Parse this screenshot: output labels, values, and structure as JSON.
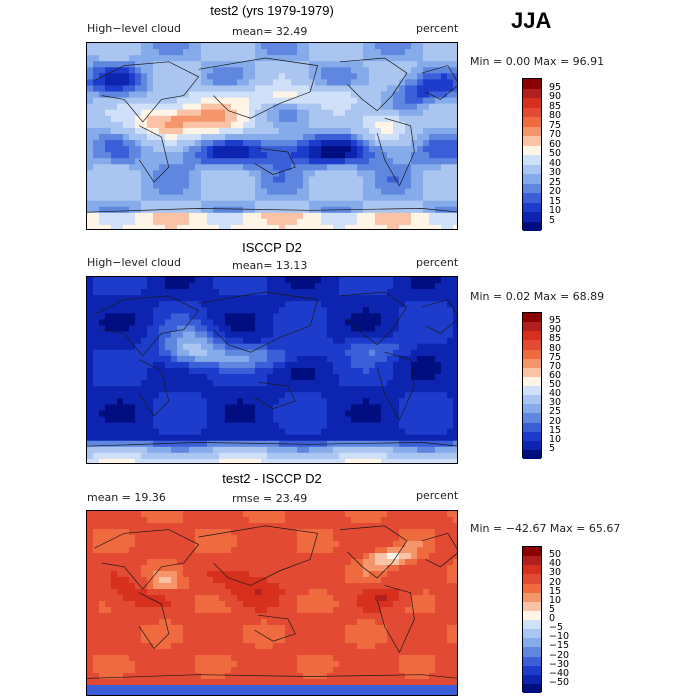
{
  "season": "JJA",
  "panels": [
    {
      "title": "test2 (yrs 1979-1979)",
      "left_label": "High−level cloud",
      "center_label": "mean=  32.49",
      "right_label": "percent",
      "minmax": "Min =    0.00 Max =  96.91",
      "field_type": "model",
      "colorbar": {
        "labels": [
          "95",
          "90",
          "85",
          "80",
          "75",
          "70",
          "60",
          "50",
          "40",
          "30",
          "25",
          "20",
          "15",
          "10",
          "5"
        ],
        "colors": [
          "#8b0000",
          "#b21f1f",
          "#d7301f",
          "#e34a33",
          "#f06a40",
          "#f5956b",
          "#fac3a6",
          "#fff5e6",
          "#d0e0f8",
          "#aac6f0",
          "#86abea",
          "#5f87e0",
          "#3a5fd8",
          "#1e3ccc",
          "#0d24b0",
          "#000e80"
        ]
      }
    },
    {
      "title": "ISCCP D2",
      "left_label": "High−level cloud",
      "center_label": "mean=  13.13",
      "right_label": "percent",
      "minmax": "Min =    0.02 Max =  68.89",
      "field_type": "obs",
      "colorbar": {
        "labels": [
          "95",
          "90",
          "85",
          "80",
          "75",
          "70",
          "60",
          "50",
          "40",
          "30",
          "25",
          "20",
          "15",
          "10",
          "5"
        ],
        "colors": [
          "#8b0000",
          "#b21f1f",
          "#d7301f",
          "#e34a33",
          "#f06a40",
          "#f5956b",
          "#fac3a6",
          "#fff5e6",
          "#d0e0f8",
          "#aac6f0",
          "#86abea",
          "#5f87e0",
          "#3a5fd8",
          "#1e3ccc",
          "#0d24b0",
          "#000e80"
        ]
      }
    },
    {
      "title": "test2 - ISCCP D2",
      "left_label": "mean =   19.36",
      "center_label": "rmse =   23.49",
      "right_label": "percent",
      "minmax": "Min = −42.67 Max =  65.67",
      "field_type": "diff",
      "colorbar": {
        "labels": [
          "50",
          "40",
          "30",
          "20",
          "15",
          "10",
          "5",
          "0",
          "−5",
          "−10",
          "−15",
          "−20",
          "−30",
          "−40",
          "−50"
        ],
        "colors": [
          "#8b0000",
          "#b21f1f",
          "#d7301f",
          "#e34a33",
          "#f06a40",
          "#f5956b",
          "#fac3a6",
          "#fff5e6",
          "#d0e0f8",
          "#aac6f0",
          "#86abea",
          "#5f87e0",
          "#3a5fd8",
          "#1e3ccc",
          "#0d24b0",
          "#000e80"
        ]
      }
    }
  ]
}
